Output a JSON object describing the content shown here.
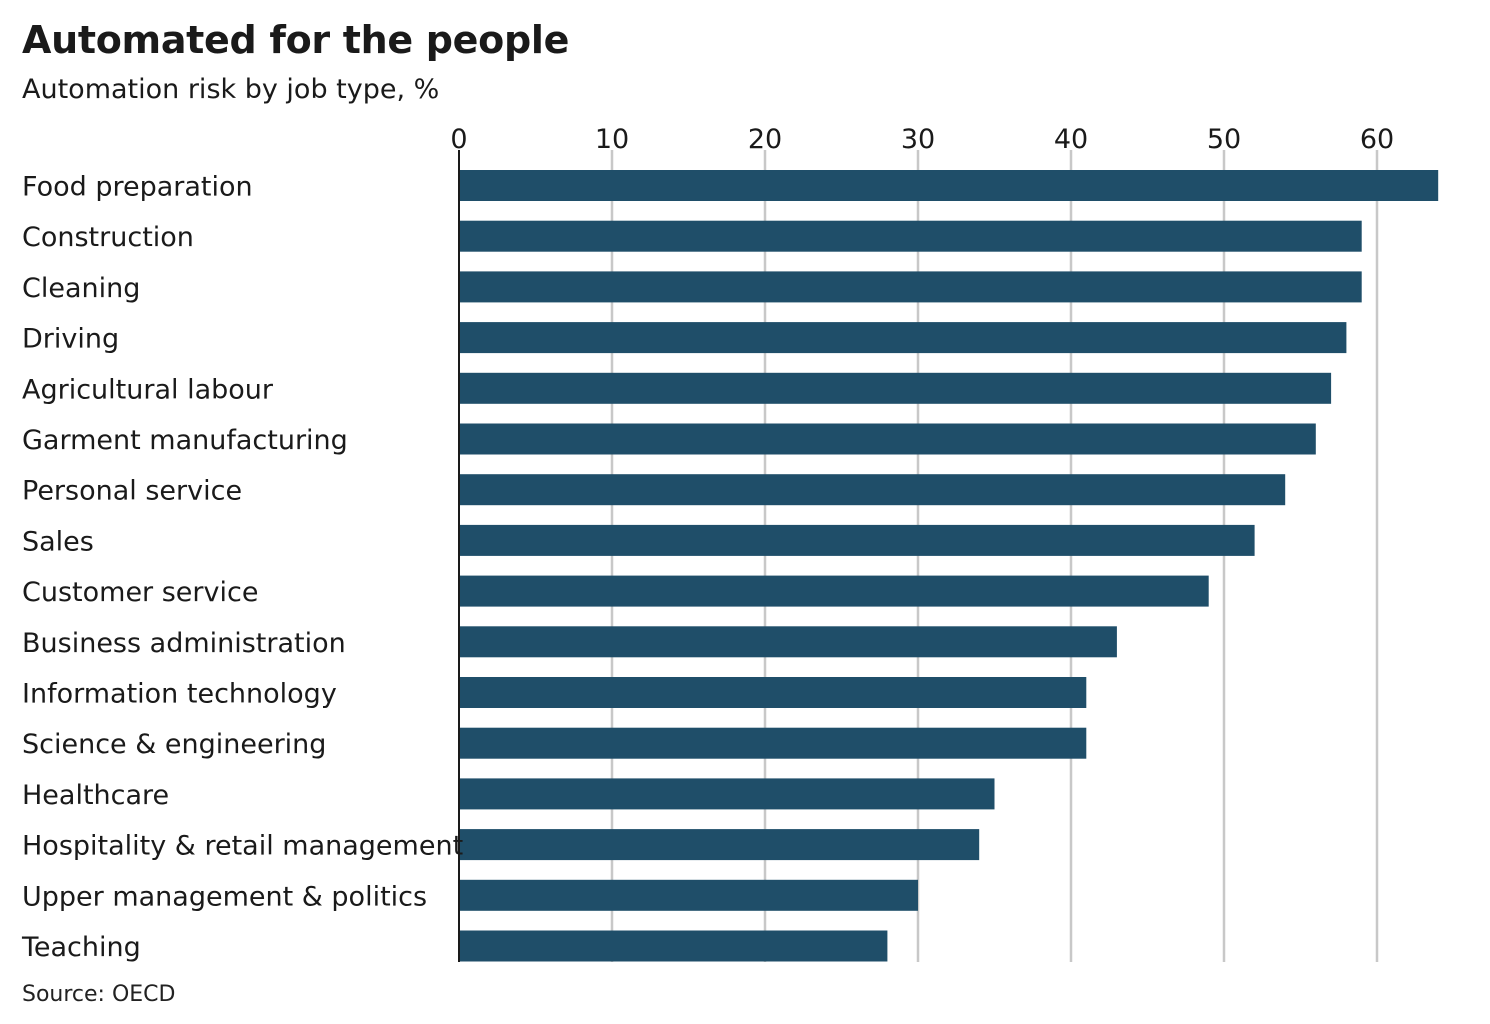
{
  "header": {
    "title": "Automated for the people",
    "subtitle": "Automation risk by job type, %"
  },
  "footer": {
    "source": "Source: OECD"
  },
  "chart_data": {
    "type": "bar",
    "orientation": "horizontal",
    "categories": [
      "Food preparation",
      "Construction",
      "Cleaning",
      "Driving",
      "Agricultural labour",
      "Garment manufacturing",
      "Personal service",
      "Sales",
      "Customer service",
      "Business administration",
      "Information technology",
      "Science & engineering",
      "Healthcare",
      "Hospitality & retail management",
      "Upper management & politics",
      "Teaching"
    ],
    "values": [
      64,
      59,
      59,
      58,
      57,
      56,
      54,
      52,
      49,
      43,
      41,
      41,
      35,
      34,
      30,
      28
    ],
    "xlim": [
      0,
      64
    ],
    "xticks": [
      0,
      10,
      20,
      30,
      40,
      50,
      60
    ],
    "xaxis_position": "top",
    "grid": true,
    "bar_color": "#1f4e69",
    "grid_color": "#c8c8c8"
  }
}
